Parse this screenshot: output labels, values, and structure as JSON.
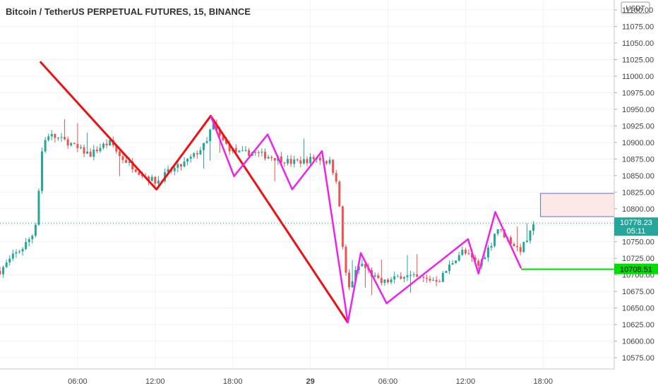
{
  "chart_data": {
    "type": "candlestick",
    "title": "Bitcoin / TetherUS PERPETUAL FUTURES, 15, BINANCE",
    "currency": "USDT",
    "price_axis": {
      "ylim": [
        10558,
        11115
      ],
      "ticks": [
        11100,
        11075,
        11050,
        11025,
        11000,
        10975,
        10950,
        10925,
        10900,
        10875,
        10850,
        10825,
        10800,
        10775,
        10750,
        10725,
        10700,
        10675,
        10650,
        10625,
        10600,
        10575
      ],
      "tick_labels": [
        "11100.00",
        "11075.00",
        "11050.00",
        "11025.00",
        "11000.00",
        "10975.00",
        "10950.00",
        "10925.00",
        "10900.00",
        "10875.00",
        "10850.00",
        "10825.00",
        "10800.00",
        "10775.00",
        "10750.00",
        "10725.00",
        "10700.00",
        "10675.00",
        "10650.00",
        "10625.00",
        "10600.00",
        "10575.00"
      ]
    },
    "time_axis": {
      "xlim": [
        0,
        47.5
      ],
      "ticks": [
        {
          "h": 6,
          "label": "06:00"
        },
        {
          "h": 12,
          "label": "12:00"
        },
        {
          "h": 18,
          "label": "18:00"
        },
        {
          "h": 24,
          "label": "29"
        },
        {
          "h": 30,
          "label": "06:00"
        },
        {
          "h": 36,
          "label": "12:00"
        },
        {
          "h": 42,
          "label": "18:00"
        }
      ]
    },
    "grid": true,
    "colors": {
      "up": "#26a69a",
      "down": "#ef5350",
      "red_pattern": "#ee1111",
      "magenta_pattern": "#ee22ee",
      "target_line": "#00dd00",
      "zone_border": "#5b6ee1",
      "zone_fill": "#fde8e8"
    },
    "current_price": {
      "label": "10778.23",
      "countdown": "05:11",
      "value": 10778.23
    },
    "target_level": {
      "label": "10708.51",
      "value": 10708.51
    },
    "zone": {
      "h0": 41.8,
      "h1": 47.5,
      "p0": 10788,
      "p1": 10823
    },
    "red_pattern": [
      {
        "h": 3.1,
        "p": 11022
      },
      {
        "h": 12.1,
        "p": 10829
      },
      {
        "h": 16.3,
        "p": 10940
      },
      {
        "h": 26.9,
        "p": 10628
      }
    ],
    "magenta_pattern": [
      {
        "h": 16.3,
        "p": 10940
      },
      {
        "h": 18.1,
        "p": 10849
      },
      {
        "h": 20.7,
        "p": 10912
      },
      {
        "h": 22.6,
        "p": 10829
      },
      {
        "h": 24.9,
        "p": 10887
      },
      {
        "h": 26.9,
        "p": 10628
      },
      {
        "h": 27.9,
        "p": 10733
      },
      {
        "h": 29.9,
        "p": 10657
      },
      {
        "h": 36.2,
        "p": 10754
      },
      {
        "h": 37.0,
        "p": 10702
      },
      {
        "h": 38.3,
        "p": 10795
      },
      {
        "h": 40.3,
        "p": 10710
      }
    ],
    "anchors": [
      [
        0.0,
        10706
      ],
      [
        1.0,
        10728
      ],
      [
        1.8,
        10742
      ],
      [
        2.6,
        10763
      ],
      [
        2.9,
        10795
      ],
      [
        3.1,
        10862
      ],
      [
        3.3,
        10895
      ],
      [
        3.7,
        10912
      ],
      [
        4.6,
        10905
      ],
      [
        5.3,
        10900
      ],
      [
        6.0,
        10890
      ],
      [
        7.0,
        10882
      ],
      [
        7.9,
        10895
      ],
      [
        8.6,
        10900
      ],
      [
        9.2,
        10880
      ],
      [
        10.0,
        10868
      ],
      [
        11.0,
        10852
      ],
      [
        12.1,
        10840
      ],
      [
        13.0,
        10855
      ],
      [
        14.0,
        10865
      ],
      [
        15.0,
        10880
      ],
      [
        16.0,
        10900
      ],
      [
        16.4,
        10928
      ],
      [
        17.0,
        10908
      ],
      [
        17.8,
        10890
      ],
      [
        18.6,
        10883
      ],
      [
        19.5,
        10885
      ],
      [
        20.5,
        10880
      ],
      [
        21.5,
        10876
      ],
      [
        22.5,
        10870
      ],
      [
        23.5,
        10872
      ],
      [
        24.5,
        10877
      ],
      [
        25.5,
        10870
      ],
      [
        26.1,
        10840
      ],
      [
        26.4,
        10760
      ],
      [
        26.9,
        10675
      ],
      [
        27.4,
        10700
      ],
      [
        27.9,
        10718
      ],
      [
        28.5,
        10705
      ],
      [
        29.4,
        10688
      ],
      [
        30.3,
        10692
      ],
      [
        31.1,
        10700
      ],
      [
        32.0,
        10696
      ],
      [
        33.0,
        10693
      ],
      [
        34.0,
        10693
      ],
      [
        35.0,
        10720
      ],
      [
        35.7,
        10736
      ],
      [
        36.3,
        10728
      ],
      [
        37.0,
        10714
      ],
      [
        38.0,
        10748
      ],
      [
        38.4,
        10772
      ],
      [
        39.0,
        10760
      ],
      [
        39.6,
        10748
      ],
      [
        40.2,
        10737
      ],
      [
        40.6,
        10748
      ],
      [
        41.0,
        10762
      ],
      [
        41.4,
        10778.23
      ]
    ]
  }
}
